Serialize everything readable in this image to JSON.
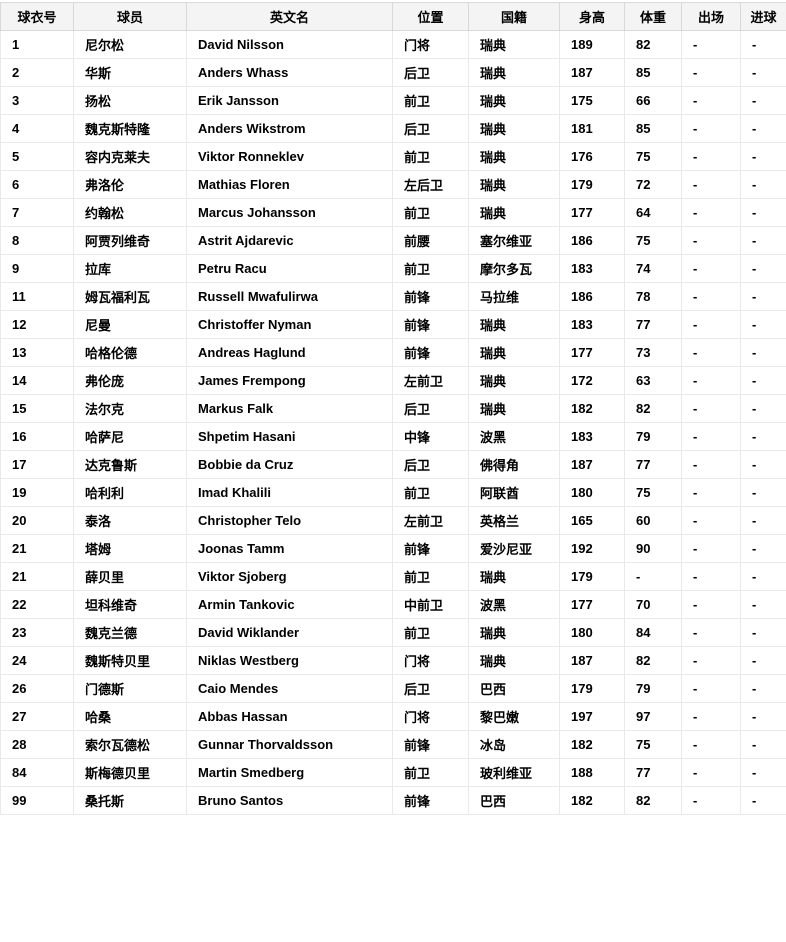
{
  "table": {
    "columns": [
      "球衣号",
      "球员",
      "英文名",
      "位置",
      "国籍",
      "身高",
      "体重",
      "出场",
      "进球"
    ],
    "rows": [
      [
        "1",
        "尼尔松",
        "David Nilsson",
        "门将",
        "瑞典",
        "189",
        "82",
        "-",
        "-"
      ],
      [
        "2",
        "华斯",
        "Anders Whass",
        "后卫",
        "瑞典",
        "187",
        "85",
        "-",
        "-"
      ],
      [
        "3",
        "扬松",
        "Erik Jansson",
        "前卫",
        "瑞典",
        "175",
        "66",
        "-",
        "-"
      ],
      [
        "4",
        "魏克斯特隆",
        "Anders Wikstrom",
        "后卫",
        "瑞典",
        "181",
        "85",
        "-",
        "-"
      ],
      [
        "5",
        "容内克莱夫",
        "Viktor Ronneklev",
        "前卫",
        "瑞典",
        "176",
        "75",
        "-",
        "-"
      ],
      [
        "6",
        "弗洛伦",
        "Mathias Floren",
        "左后卫",
        "瑞典",
        "179",
        "72",
        "-",
        "-"
      ],
      [
        "7",
        "约翰松",
        "Marcus Johansson",
        "前卫",
        "瑞典",
        "177",
        "64",
        "-",
        "-"
      ],
      [
        "8",
        "阿贾列维奇",
        "Astrit Ajdarevic",
        "前腰",
        "塞尔维亚",
        "186",
        "75",
        "-",
        "-"
      ],
      [
        "9",
        "拉库",
        "Petru Racu",
        "前卫",
        "摩尔多瓦",
        "183",
        "74",
        "-",
        "-"
      ],
      [
        "11",
        "姆瓦福利瓦",
        "Russell Mwafulirwa",
        "前锋",
        "马拉维",
        "186",
        "78",
        "-",
        "-"
      ],
      [
        "12",
        "尼曼",
        "Christoffer Nyman",
        "前锋",
        "瑞典",
        "183",
        "77",
        "-",
        "-"
      ],
      [
        "13",
        "哈格伦德",
        "Andreas Haglund",
        "前锋",
        "瑞典",
        "177",
        "73",
        "-",
        "-"
      ],
      [
        "14",
        "弗伦庞",
        "James Frempong",
        "左前卫",
        "瑞典",
        "172",
        "63",
        "-",
        "-"
      ],
      [
        "15",
        "法尔克",
        "Markus Falk",
        "后卫",
        "瑞典",
        "182",
        "82",
        "-",
        "-"
      ],
      [
        "16",
        "哈萨尼",
        "Shpetim Hasani",
        "中锋",
        "波黑",
        "183",
        "79",
        "-",
        "-"
      ],
      [
        "17",
        "达克鲁斯",
        "Bobbie da Cruz",
        "后卫",
        "佛得角",
        "187",
        "77",
        "-",
        "-"
      ],
      [
        "19",
        "哈利利",
        "Imad Khalili",
        "前卫",
        "阿联酋",
        "180",
        "75",
        "-",
        "-"
      ],
      [
        "20",
        "泰洛",
        "Christopher Telo",
        "左前卫",
        "英格兰",
        "165",
        "60",
        "-",
        "-"
      ],
      [
        "21",
        "塔姆",
        "Joonas Tamm",
        "前锋",
        "爱沙尼亚",
        "192",
        "90",
        "-",
        "-"
      ],
      [
        "21",
        "薛贝里",
        "Viktor Sjoberg",
        "前卫",
        "瑞典",
        "179",
        "-",
        "-",
        "-"
      ],
      [
        "22",
        "坦科维奇",
        "Armin Tankovic",
        "中前卫",
        "波黑",
        "177",
        "70",
        "-",
        "-"
      ],
      [
        "23",
        "魏克兰德",
        "David Wiklander",
        "前卫",
        "瑞典",
        "180",
        "84",
        "-",
        "-"
      ],
      [
        "24",
        "魏斯特贝里",
        "Niklas Westberg",
        "门将",
        "瑞典",
        "187",
        "82",
        "-",
        "-"
      ],
      [
        "26",
        "门德斯",
        "Caio Mendes",
        "后卫",
        "巴西",
        "179",
        "79",
        "-",
        "-"
      ],
      [
        "27",
        "哈桑",
        "Abbas Hassan",
        "门将",
        "黎巴嫩",
        "197",
        "97",
        "-",
        "-"
      ],
      [
        "28",
        "索尔瓦德松",
        "Gunnar Thorvaldsson",
        "前锋",
        "冰岛",
        "182",
        "75",
        "-",
        "-"
      ],
      [
        "84",
        "斯梅德贝里",
        "Martin Smedberg",
        "前卫",
        "玻利维亚",
        "188",
        "77",
        "-",
        "-"
      ],
      [
        "99",
        "桑托斯",
        "Bruno Santos",
        "前锋",
        "巴西",
        "182",
        "82",
        "-",
        "-"
      ]
    ],
    "colors": {
      "header_background": "#f4f4f4",
      "header_border": "#d9d9d9",
      "row_border": "#e9e9e9",
      "text": "#000000"
    }
  }
}
